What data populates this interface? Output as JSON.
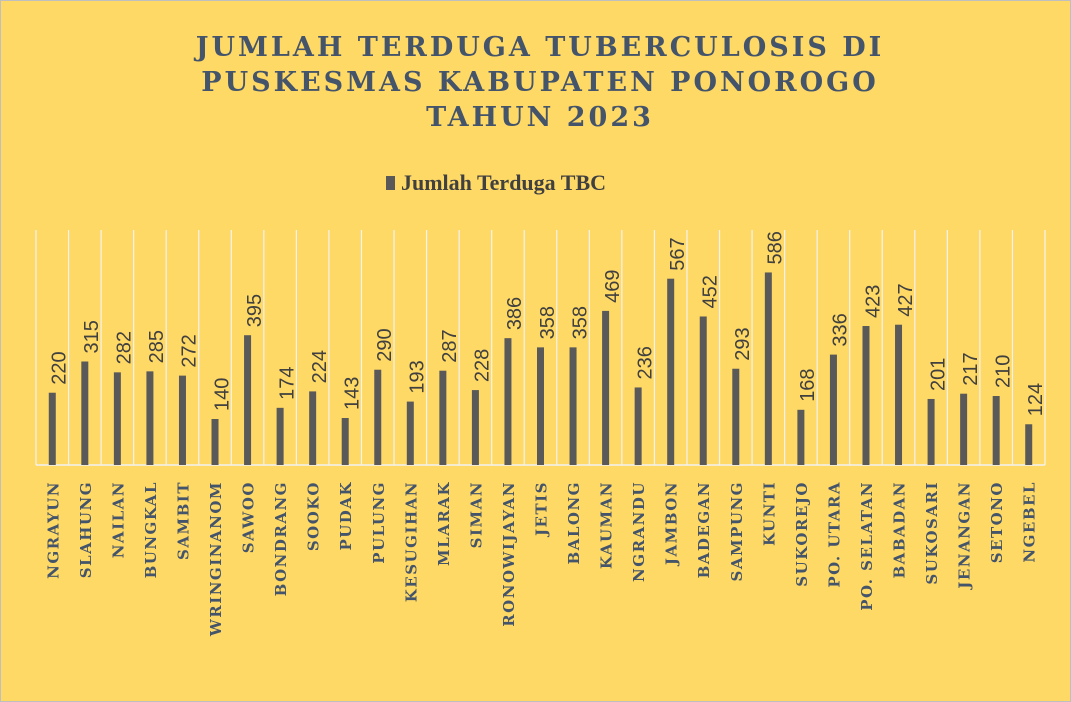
{
  "chart_data": {
    "type": "bar",
    "title": [
      "JUMLAH TERDUGA TUBERCULOSIS DI",
      "PUSKESMAS KABUPATEN PONOROGO",
      "TAHUN 2023"
    ],
    "series": [
      {
        "name": "Jumlah Terduga TBC",
        "color": "#595959",
        "values": [
          220,
          315,
          282,
          285,
          272,
          140,
          395,
          174,
          224,
          143,
          290,
          193,
          287,
          228,
          386,
          358,
          358,
          469,
          236,
          567,
          452,
          293,
          586,
          168,
          336,
          423,
          427,
          201,
          217,
          210,
          124
        ]
      }
    ],
    "categories": [
      "NGRAYUN",
      "SLAHUNG",
      "NAILAN",
      "BUNGKAL",
      "SAMBIT",
      "WRINGINANOM",
      "SAWOO",
      "BONDRANG",
      "SOOKO",
      "PUDAK",
      "PULUNG",
      "KESUGIHAN",
      "MLARAK",
      "SIMAN",
      "RONOWIJAYAN",
      "JETIS",
      "BALONG",
      "KAUMAN",
      "NGRANDU",
      "JAMBON",
      "BADEGAN",
      "SAMPUNG",
      "KUNTI",
      "SUKOREJO",
      "PO. UTARA",
      "PO. SELATAN",
      "BABADAN",
      "SUKOSARI",
      "JENANGAN",
      "SETONO",
      "NGEBEL"
    ],
    "ylim": [
      0,
      700
    ],
    "grid": true,
    "legend": "top"
  }
}
